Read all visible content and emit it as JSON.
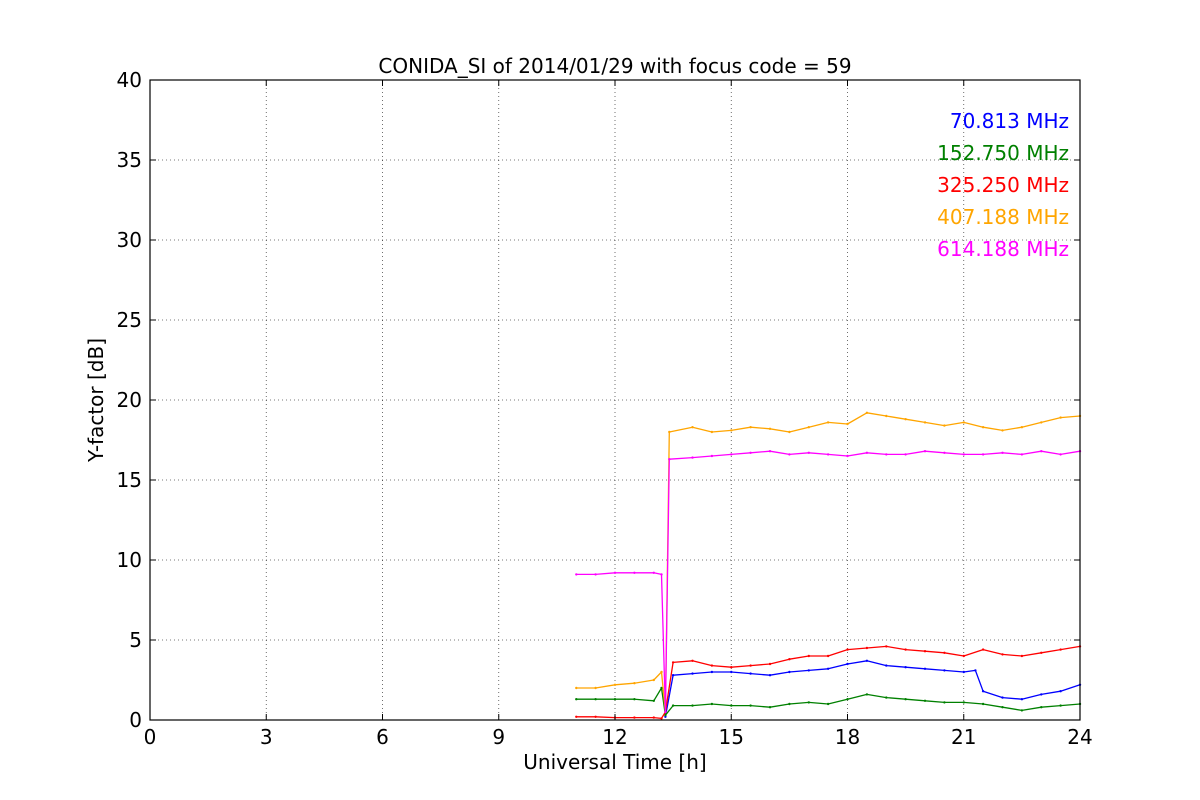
{
  "chart_data": {
    "type": "line",
    "title": "CONIDA_SI of 2014/01/29 with focus code = 59",
    "xlabel": "Universal Time [h]",
    "ylabel": "Y-factor [dB]",
    "xlim": [
      0,
      24
    ],
    "ylim": [
      0,
      40
    ],
    "xticks": [
      0,
      3,
      6,
      9,
      12,
      15,
      18,
      21,
      24
    ],
    "yticks": [
      0,
      5,
      10,
      15,
      20,
      25,
      30,
      35,
      40
    ],
    "grid": true,
    "legend_position": "top-right",
    "series": [
      {
        "name": "70.813 MHz",
        "color": "#0000ff",
        "x": [
          13.3,
          13.5,
          14,
          14.5,
          15,
          15.5,
          16,
          16.5,
          17,
          17.5,
          18,
          18.5,
          19,
          19.5,
          20,
          20.5,
          21,
          21.3,
          21.5,
          22,
          22.5,
          23,
          23.5,
          24
        ],
        "y": [
          0.2,
          2.8,
          2.9,
          3.0,
          3.0,
          2.9,
          2.8,
          3.0,
          3.1,
          3.2,
          3.5,
          3.7,
          3.4,
          3.3,
          3.2,
          3.1,
          3.0,
          3.1,
          1.8,
          1.4,
          1.3,
          1.6,
          1.8,
          2.2
        ]
      },
      {
        "name": "152.750 MHz",
        "color": "#008000",
        "x": [
          11.0,
          11.5,
          12,
          12.5,
          13.0,
          13.2,
          13.3,
          13.5,
          14,
          14.5,
          15,
          15.5,
          16,
          16.5,
          17,
          17.5,
          18,
          18.5,
          19,
          19.5,
          20,
          20.5,
          21,
          21.5,
          22,
          22.5,
          23,
          23.5,
          24
        ],
        "y": [
          1.3,
          1.3,
          1.3,
          1.3,
          1.2,
          2.0,
          0.3,
          0.9,
          0.9,
          1.0,
          0.9,
          0.9,
          0.8,
          1.0,
          1.1,
          1.0,
          1.3,
          1.6,
          1.4,
          1.3,
          1.2,
          1.1,
          1.1,
          1.0,
          0.8,
          0.6,
          0.8,
          0.9,
          1.0
        ]
      },
      {
        "name": "325.250 MHz",
        "color": "#ff0000",
        "x": [
          11.0,
          11.5,
          12,
          12.5,
          13.0,
          13.2,
          13.3,
          13.5,
          14,
          14.5,
          15,
          15.5,
          16,
          16.5,
          17,
          17.5,
          18,
          18.5,
          19,
          19.5,
          20,
          20.5,
          21,
          21.5,
          22,
          22.5,
          23,
          23.5,
          24
        ],
        "y": [
          0.2,
          0.2,
          0.15,
          0.15,
          0.15,
          0.1,
          0.5,
          3.6,
          3.7,
          3.4,
          3.3,
          3.4,
          3.5,
          3.8,
          4.0,
          4.0,
          4.4,
          4.5,
          4.6,
          4.4,
          4.3,
          4.2,
          4.0,
          4.4,
          4.1,
          4.0,
          4.2,
          4.4,
          4.6
        ]
      },
      {
        "name": "407.188 MHz",
        "color": "#ffa500",
        "x": [
          11.0,
          11.5,
          12,
          12.5,
          13.0,
          13.2,
          13.3,
          13.4,
          14,
          14.5,
          15,
          15.5,
          16,
          16.5,
          17,
          17.5,
          18,
          18.5,
          19,
          19.5,
          20,
          20.5,
          21,
          21.5,
          22,
          22.5,
          23,
          23.5,
          24
        ],
        "y": [
          2.0,
          2.0,
          2.2,
          2.3,
          2.5,
          3.0,
          0.5,
          18.0,
          18.3,
          18.0,
          18.1,
          18.3,
          18.2,
          18.0,
          18.3,
          18.6,
          18.5,
          19.2,
          19.0,
          18.8,
          18.6,
          18.4,
          18.6,
          18.3,
          18.1,
          18.3,
          18.6,
          18.9,
          19.0
        ]
      },
      {
        "name": "614.188 MHz",
        "color": "#ff00ff",
        "x": [
          11.0,
          11.5,
          12,
          12.5,
          13.0,
          13.2,
          13.3,
          13.4,
          14,
          14.5,
          15,
          15.5,
          16,
          16.5,
          17,
          17.5,
          18,
          18.5,
          19,
          19.5,
          20,
          20.5,
          21,
          21.5,
          22,
          22.5,
          23,
          23.5,
          24
        ],
        "y": [
          9.1,
          9.1,
          9.2,
          9.2,
          9.2,
          9.1,
          0.5,
          16.3,
          16.4,
          16.5,
          16.6,
          16.7,
          16.8,
          16.6,
          16.7,
          16.6,
          16.5,
          16.7,
          16.6,
          16.6,
          16.8,
          16.7,
          16.6,
          16.6,
          16.7,
          16.6,
          16.8,
          16.6,
          16.8
        ]
      }
    ]
  }
}
